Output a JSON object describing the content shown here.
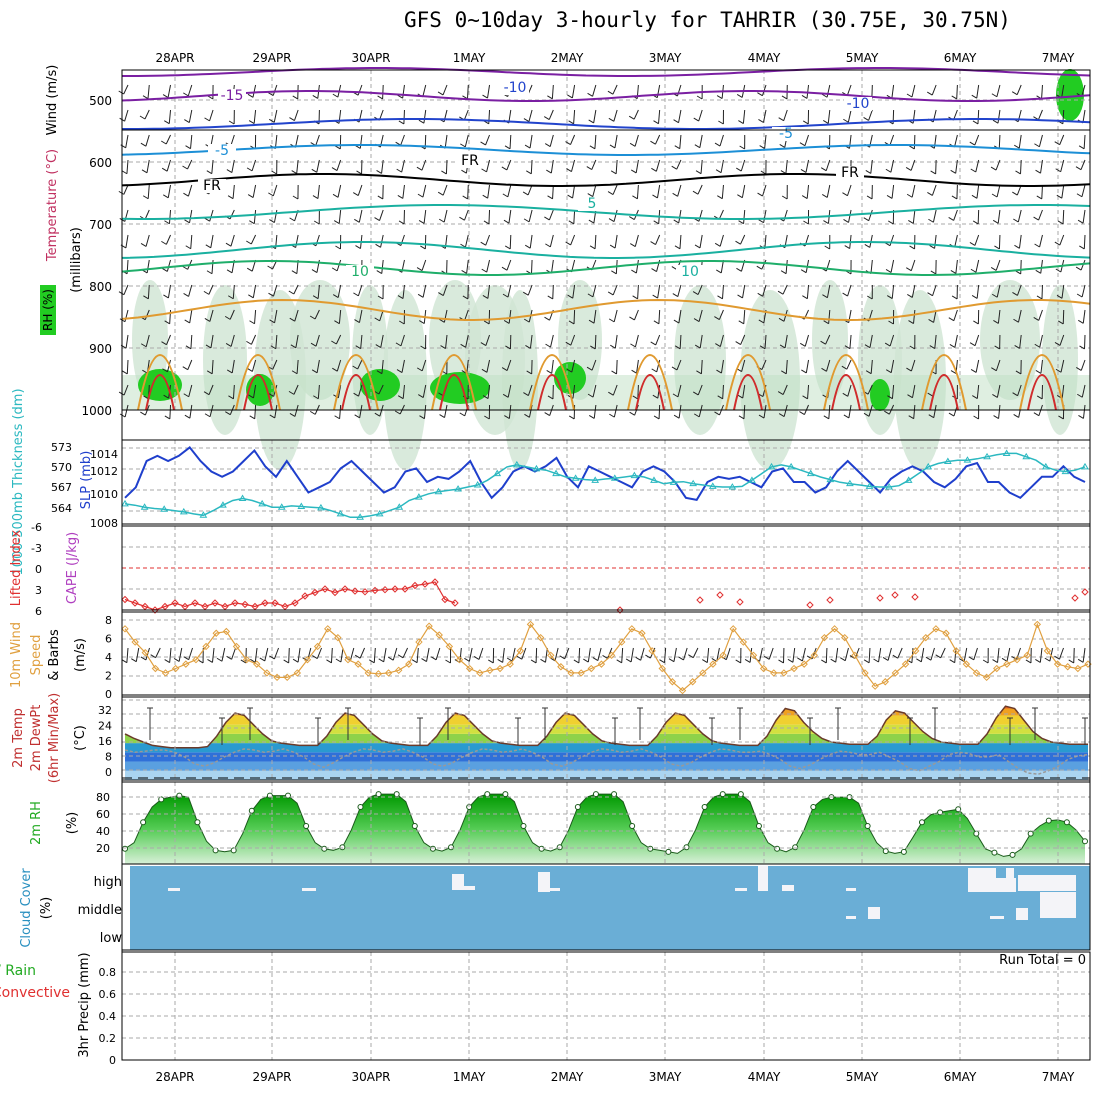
{
  "title": "GFS 0~10day 3-hourly for TAHRIR (30.75E, 30.75N)",
  "dates": [
    "28APR",
    "29APR",
    "30APR",
    "1MAY",
    "2MAY",
    "3MAY",
    "4MAY",
    "5MAY",
    "6MAY",
    "7MAY"
  ],
  "colors": {
    "grid": "#aaaaaa",
    "temp_purple": "#7a1fa2",
    "temp_blue": "#2244cc",
    "temp_lightblue": "#1c8fd6",
    "freezing": "#000000",
    "temp_teal": "#1ab0a0",
    "temp_green": "#1fae6a",
    "temp_orange": "#e09a30",
    "temp_red": "#d02c2c",
    "rh_green": "#22cc22",
    "slp": "#1f3fcc",
    "thickness": "#2bb8c0",
    "lifted": "#e03030",
    "wind_speed": "#e0a040",
    "cloud_bg": "#6aaed6"
  },
  "panels": {
    "upper": {
      "ylabel_wind": "Wind (m/s)",
      "ylabel_temp": "Temperature (°C)",
      "ylabel_rh": "RH (%)",
      "ylabel_mb": "(millibars)",
      "yticks": [
        "500",
        "600",
        "700",
        "800",
        "900",
        "1000"
      ],
      "contour_labels": [
        "-15",
        "-10",
        "-10",
        "-5",
        "-5",
        "FR",
        "FR",
        "FR",
        "5",
        "10",
        "10"
      ]
    },
    "slp": {
      "ylabel_thick": "1000-500mb Thickness (dm)",
      "ylabel_slp": "SLP (mb)",
      "thick_ticks": [
        "573",
        "570",
        "567",
        "564"
      ],
      "slp_ticks": [
        "1014",
        "1012",
        "1010",
        "1008"
      ]
    },
    "lifted": {
      "ylabel_li": "Lifted Index",
      "ylabel_cape": "CAPE (J/kg)",
      "yticks": [
        "-6",
        "-3",
        "0",
        "3",
        "6"
      ]
    },
    "wind10": {
      "ylabel1": "10m Wind",
      "ylabel2": "Speed",
      "ylabel3": "& Barbs",
      "unit": "(m/s)",
      "yticks": [
        "8",
        "6",
        "4",
        "2",
        "0"
      ]
    },
    "temp2m": {
      "ylabel1": "2m Temp",
      "ylabel2": "2m DewPt",
      "ylabel3": "(6hr Min/Max)",
      "unit": "(°C)",
      "yticks": [
        "32",
        "24",
        "16",
        "8",
        "0"
      ]
    },
    "rh2m": {
      "ylabel": "2m RH",
      "unit": "(%)",
      "yticks": [
        "80",
        "60",
        "40",
        "20"
      ]
    },
    "cloud": {
      "ylabel": "Cloud Cover",
      "unit": "(%)",
      "levels": [
        "high",
        "middle",
        "low"
      ]
    },
    "precip": {
      "ylabel1": "Total / Rain",
      "ylabel2": "Convective",
      "ylabel3": "3hr Precip (mm)",
      "yticks": [
        "0.8",
        "0.6",
        "0.4",
        "0.2",
        "0"
      ],
      "run_total": "Run Total = 0"
    }
  },
  "chart_data": [
    {
      "type": "line",
      "name": "SLP (mb)",
      "ylim": [
        1008,
        1015
      ],
      "values": [
        1010,
        1011,
        1013.5,
        1014,
        1013.5,
        1014,
        1014.8,
        1013.5,
        1012.5,
        1012,
        1012.5,
        1013.5,
        1014.5,
        1013,
        1012,
        1013.5,
        1012,
        1010.5,
        1011,
        1011.5,
        1012.8,
        1013.5,
        1012.5,
        1011.5,
        1010.5,
        1011,
        1012.5,
        1012.8,
        1011.5,
        1012,
        1011.8,
        1012.5,
        1013.5,
        1011.5,
        1010,
        1011,
        1012.5,
        1013,
        1012.5,
        1013,
        1013.8,
        1012,
        1011,
        1013,
        1012.5,
        1012,
        1011.5,
        1011,
        1012.5,
        1013,
        1012.5,
        1011.5,
        1010,
        1009.8,
        1011.5,
        1012,
        1011.8,
        1012,
        1011.5,
        1011,
        1012.5,
        1012.8,
        1011.5,
        1011.5,
        1010.5,
        1011,
        1012.5,
        1013.5,
        1012.5,
        1011.5,
        1010.5,
        1011.8,
        1012.5,
        1013,
        1012.5,
        1011.5,
        1011,
        1011.8,
        1013,
        1013.3,
        1011.5,
        1011.5,
        1010.5,
        1010,
        1011,
        1012,
        1012,
        1013,
        1012,
        1011.5
      ]
    },
    {
      "type": "line",
      "name": "1000-500mb Thickness (dm)",
      "ylim": [
        562,
        574
      ],
      "values": [
        565,
        564.8,
        564.5,
        564.3,
        564.2,
        564,
        563.8,
        563.5,
        563.3,
        564,
        564.8,
        565.5,
        565.8,
        565.5,
        565,
        564.5,
        564.5,
        564.7,
        564.6,
        564.5,
        564.4,
        564,
        563.5,
        563,
        563,
        563.2,
        563.5,
        564,
        564.5,
        565.5,
        566,
        566.5,
        566.8,
        567,
        567.2,
        567.5,
        567.8,
        568.5,
        569.5,
        570.5,
        570.8,
        570.5,
        570.2,
        570,
        569.5,
        569,
        568.8,
        568.6,
        568.5,
        568.7,
        568.8,
        569,
        569.2,
        569,
        568.5,
        568,
        568.2,
        568.3,
        568,
        567.8,
        567.6,
        567.5,
        567.5,
        567.6,
        568.5,
        569.5,
        570.5,
        570.8,
        570.5,
        570,
        569.5,
        569,
        568.6,
        568.2,
        568,
        567.8,
        567.6,
        567.5,
        567.5,
        567.7,
        568.5,
        569.5,
        570.5,
        571,
        571.3,
        571.5,
        571.5,
        571.7,
        572,
        572.3,
        572.5,
        572.5,
        572,
        571.5,
        570.5,
        570,
        569.8,
        570,
        570.5
      ]
    },
    {
      "type": "line",
      "name": "Lifted Index",
      "ylim": [
        -6,
        6
      ],
      "values": [
        4.5,
        5,
        5.5,
        6,
        5.5,
        5,
        5.5,
        5,
        5.5,
        5,
        5.5,
        5,
        5.2,
        5.5,
        5,
        5,
        5.5,
        5,
        4,
        3.5,
        3,
        3.5,
        3,
        3.3,
        3.4,
        3.2,
        3.1,
        3,
        3,
        2.5,
        2.3,
        2,
        4.5,
        5,
        5.5,
        5,
        5.3,
        6,
        6.5
      ]
    },
    {
      "type": "line",
      "name": "10m Wind Speed (m/s)",
      "ylim": [
        0,
        8.5
      ],
      "values": [
        7.5,
        6,
        4.8,
        3,
        2.5,
        3,
        3.5,
        4,
        5.5,
        7,
        7.2,
        5.5,
        4,
        3.5,
        2.5,
        2,
        2,
        2.5,
        4,
        5.5,
        7.5,
        6.5,
        4,
        3.5,
        2.5,
        2.4,
        2.5,
        2.8,
        3.5,
        6,
        7.8,
        6.8,
        5.5,
        4,
        3,
        2.5,
        2.8,
        3,
        3.5,
        5,
        8,
        6.5,
        4.5,
        3.2,
        2.5,
        2.5,
        3,
        3.5,
        4.5,
        6,
        7.5,
        7,
        5,
        3,
        1.5,
        0.5,
        1.5,
        2.5,
        3.5,
        4.5,
        7.5,
        6,
        4.5,
        3,
        2.5,
        2.5,
        3,
        3.5,
        4.5,
        6.5,
        7.5,
        6.5,
        4.5,
        2.5,
        1,
        1.5,
        2.5,
        3.5,
        5,
        6.5,
        7.5,
        7,
        5,
        3.5,
        2.5,
        2,
        3,
        3.5,
        4,
        4.5,
        8,
        5,
        3.5,
        3.2,
        3,
        3.5
      ]
    },
    {
      "type": "area",
      "name": "2m Temp (°C)",
      "ylim": [
        0,
        35
      ],
      "values": [
        20,
        18,
        16.5,
        15,
        14.5,
        14,
        14,
        14,
        14,
        14.5,
        19,
        25,
        29,
        28,
        24,
        20,
        17,
        16,
        15.5,
        15,
        15,
        15,
        19,
        25,
        29,
        28,
        24,
        20,
        17,
        16,
        15.5,
        15,
        15,
        15,
        19,
        25,
        29,
        28,
        24,
        20,
        17,
        16,
        15.5,
        15,
        15,
        15,
        19,
        25,
        29,
        28,
        24,
        20,
        17,
        16,
        15.5,
        15,
        15,
        15,
        19,
        25,
        29,
        28,
        24,
        20,
        17,
        16,
        15.5,
        15,
        15,
        15,
        19,
        26,
        31,
        30,
        25,
        21,
        18,
        16.5,
        16,
        15.5,
        15.5,
        15.5,
        19,
        26,
        30,
        29,
        25,
        21,
        18,
        16.5,
        16,
        15.5,
        15.5,
        15.5,
        20,
        27,
        32,
        31,
        26,
        21,
        18,
        16.5,
        16,
        15.5,
        15.5,
        15.5
      ]
    },
    {
      "type": "line",
      "name": "2m DewPt (°C)",
      "ylim": [
        0,
        35
      ],
      "values": [
        13,
        12,
        12.5,
        13,
        13,
        12,
        10,
        7,
        6,
        7.5,
        10,
        12,
        13.5,
        13,
        12,
        12.5,
        13.5,
        12,
        10,
        7,
        5.5,
        7.5,
        10,
        12,
        13.5,
        13,
        12,
        12.5,
        13.5,
        12,
        10,
        7,
        6,
        7.5,
        10,
        12,
        13.5,
        13,
        12,
        12.5,
        13.5,
        12,
        10,
        7,
        6,
        7.5,
        10,
        12,
        13.5,
        13,
        12,
        12.5,
        13.5,
        12,
        10,
        7,
        6,
        7.5,
        10,
        12,
        13.5,
        13,
        12,
        12,
        12.5,
        11,
        9,
        6,
        5,
        6.5,
        9,
        11,
        12.5,
        12,
        11,
        11,
        12,
        10,
        8,
        5,
        4,
        6,
        8,
        11,
        12,
        11.5,
        10,
        10,
        11,
        8,
        5,
        3,
        2.5,
        4,
        6,
        9,
        10.5,
        11
      ]
    },
    {
      "type": "area",
      "name": "2m RH (%)",
      "ylim": [
        10,
        100
      ],
      "values": [
        20,
        28,
        55,
        75,
        85,
        88,
        90,
        88,
        55,
        30,
        18,
        16,
        18,
        40,
        70,
        85,
        90,
        90,
        90,
        80,
        50,
        28,
        20,
        18,
        22,
        45,
        75,
        88,
        92,
        92,
        92,
        82,
        50,
        28,
        20,
        17,
        22,
        45,
        75,
        88,
        92,
        92,
        92,
        82,
        50,
        28,
        20,
        17,
        22,
        45,
        75,
        88,
        92,
        92,
        92,
        82,
        50,
        28,
        20,
        18,
        16,
        14,
        22,
        45,
        75,
        88,
        92,
        92,
        92,
        82,
        50,
        28,
        20,
        16,
        22,
        45,
        75,
        85,
        88,
        88,
        88,
        80,
        50,
        28,
        17,
        14,
        16,
        35,
        55,
        65,
        68,
        70,
        72,
        60,
        40,
        20,
        15,
        10,
        12,
        20,
        40,
        50,
        57,
        58,
        55,
        45,
        30
      ]
    }
  ]
}
